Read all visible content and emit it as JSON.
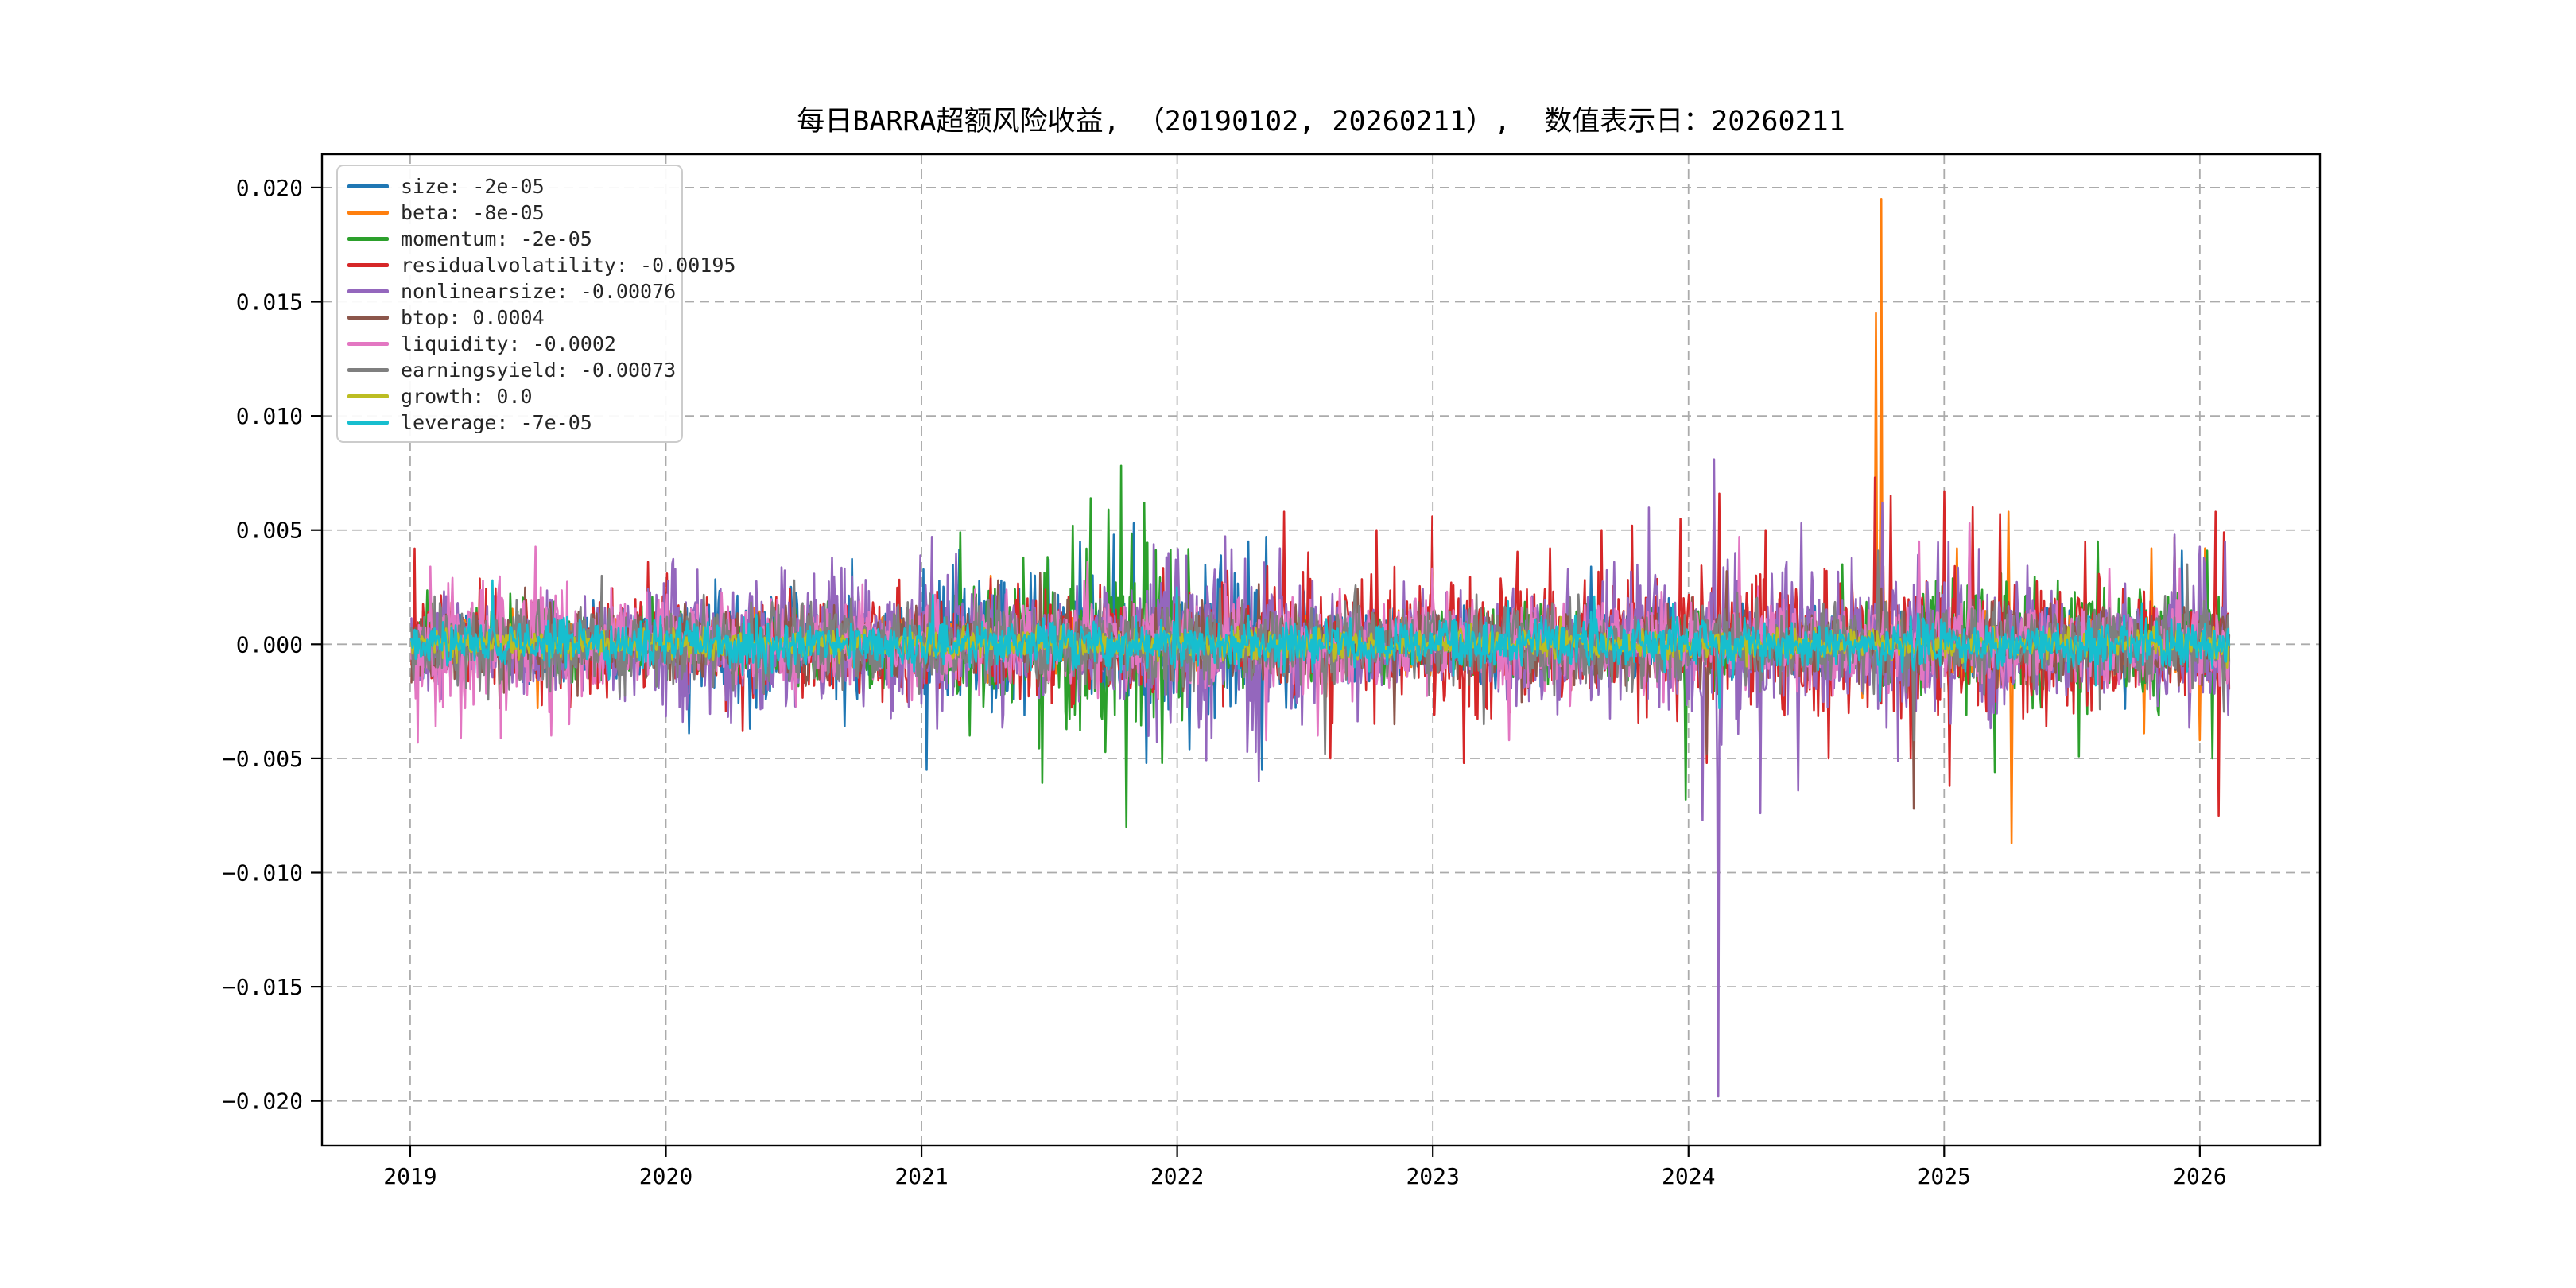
{
  "chart_data": {
    "type": "line",
    "title": "每日BARRA超额风险收益, （20190102, 20260211）,  数值表示日：20260211",
    "grid": true,
    "legend_position": "upper left",
    "xlim": [
      2018.655,
      2026.47
    ],
    "ylim": [
      -0.02196,
      0.02146
    ],
    "x_ticks": [
      2019,
      2020,
      2021,
      2022,
      2023,
      2024,
      2025,
      2026
    ],
    "x_tick_labels": [
      "2019",
      "2020",
      "2021",
      "2022",
      "2023",
      "2024",
      "2025",
      "2026"
    ],
    "y_ticks": [
      0.02,
      0.015,
      0.01,
      0.005,
      0.0,
      -0.005,
      -0.01,
      -0.015,
      -0.02
    ],
    "y_tick_labels": [
      "0.020",
      "0.015",
      "0.010",
      "0.005",
      "0.000",
      "−0.005",
      "−0.010",
      "−0.015",
      "−0.020"
    ],
    "x_start": 2019.005,
    "x_end": 2026.115,
    "points_per_series": 1730,
    "axis_color": "#000000",
    "grid_color": "#ababab",
    "series": [
      {
        "name": "size",
        "label": "size: -2e-05",
        "color": "#1f77b4",
        "seed": 11,
        "base_amp": 0.0011,
        "last_value": -2e-05,
        "bursts": [
          [
            2020.05,
            2020.8,
            0.0017
          ],
          [
            2021.0,
            2022.5,
            0.0022
          ]
        ],
        "spikes": [
          [
            2020.09,
            -0.0039
          ],
          [
            2020.33,
            -0.0037
          ],
          [
            2020.7,
            -0.0036
          ],
          [
            2021.02,
            -0.0055
          ],
          [
            2021.62,
            0.0045
          ],
          [
            2021.75,
            0.0048
          ],
          [
            2021.83,
            0.0053
          ],
          [
            2021.88,
            -0.0052
          ],
          [
            2022.05,
            -0.0046
          ],
          [
            2022.28,
            0.0045
          ],
          [
            2022.33,
            -0.0055
          ],
          [
            2022.35,
            0.0047
          ],
          [
            2023.62,
            0.0034
          ],
          [
            2025.93,
            0.0041
          ]
        ]
      },
      {
        "name": "beta",
        "label": "beta: -8e-05",
        "color": "#ff7f0e",
        "seed": 22,
        "base_amp": 0.00085,
        "last_value": -8e-05,
        "bursts": [
          [
            2024.6,
            2025.4,
            0.0013
          ]
        ],
        "spikes": [
          [
            2019.5,
            -0.0028
          ],
          [
            2021.27,
            0.003
          ],
          [
            2024.735,
            0.0145
          ],
          [
            2024.755,
            0.0195
          ],
          [
            2025.05,
            0.0042
          ],
          [
            2025.25,
            0.0058
          ],
          [
            2025.265,
            -0.0087
          ],
          [
            2025.78,
            -0.0039
          ],
          [
            2025.81,
            0.0042
          ],
          [
            2026.0,
            -0.0042
          ],
          [
            2026.02,
            0.0042
          ]
        ]
      },
      {
        "name": "momentum",
        "label": "momentum: -2e-05",
        "color": "#2ca02c",
        "seed": 33,
        "base_amp": 0.0012,
        "last_value": -2e-05,
        "bursts": [
          [
            2021.1,
            2021.4,
            0.0024
          ],
          [
            2021.45,
            2022.05,
            0.003
          ],
          [
            2024.85,
            2026.2,
            0.002
          ]
        ],
        "spikes": [
          [
            2021.15,
            0.0049
          ],
          [
            2021.19,
            -0.004
          ],
          [
            2021.59,
            0.0052
          ],
          [
            2021.66,
            0.0064
          ],
          [
            2021.73,
            0.0059
          ],
          [
            2021.8,
            -0.008
          ],
          [
            2021.87,
            0.0062
          ],
          [
            2021.94,
            -0.0052
          ],
          [
            2023.99,
            -0.0068
          ],
          [
            2024.6,
            0.0035
          ],
          [
            2025.2,
            -0.0056
          ],
          [
            2025.6,
            0.0045
          ],
          [
            2026.03,
            0.0041
          ],
          [
            2026.05,
            -0.005
          ]
        ]
      },
      {
        "name": "residualvolatility",
        "label": "residualvolatility: -0.00195",
        "color": "#d62728",
        "seed": 44,
        "base_amp": 0.0016,
        "last_value": -0.00195,
        "bursts": [
          [
            2022.35,
            2025.6,
            0.0022
          ]
        ],
        "spikes": [
          [
            2019.93,
            0.0036
          ],
          [
            2020.005,
            0.0031
          ],
          [
            2020.3,
            -0.0038
          ],
          [
            2022.42,
            0.0058
          ],
          [
            2022.6,
            -0.005
          ],
          [
            2022.78,
            0.005
          ],
          [
            2023.0,
            0.0056
          ],
          [
            2023.12,
            -0.0052
          ],
          [
            2023.46,
            0.0042
          ],
          [
            2023.66,
            0.005
          ],
          [
            2023.78,
            0.0052
          ],
          [
            2023.97,
            0.0055
          ],
          [
            2024.07,
            -0.0052
          ],
          [
            2024.12,
            0.0066
          ],
          [
            2024.3,
            0.005
          ],
          [
            2024.55,
            -0.005
          ],
          [
            2024.73,
            0.0073
          ],
          [
            2024.79,
            0.0065
          ],
          [
            2024.87,
            -0.005
          ],
          [
            2025.0,
            0.0067
          ],
          [
            2025.02,
            -0.0062
          ],
          [
            2025.11,
            0.006
          ],
          [
            2025.22,
            0.0057
          ],
          [
            2025.55,
            0.0045
          ],
          [
            2025.9,
            0.0047
          ],
          [
            2026.06,
            0.0058
          ],
          [
            2026.075,
            -0.0075
          ],
          [
            2026.095,
            0.0049
          ]
        ]
      },
      {
        "name": "nonlinearsize",
        "label": "nonlinearsize: -0.00076",
        "color": "#9467bd",
        "seed": 55,
        "base_amp": 0.0016,
        "last_value": -0.00076,
        "bursts": [
          [
            2020.0,
            2021.35,
            0.0023
          ],
          [
            2021.85,
            2022.55,
            0.0027
          ],
          [
            2023.3,
            2023.95,
            0.0022
          ],
          [
            2024.0,
            2025.35,
            0.0026
          ],
          [
            2025.8,
            2026.2,
            0.0024
          ]
        ],
        "spikes": [
          [
            2020.65,
            0.0038
          ],
          [
            2021.04,
            0.0047
          ],
          [
            2021.06,
            -0.0037
          ],
          [
            2022.32,
            -0.006
          ],
          [
            2022.4,
            0.0042
          ],
          [
            2023.71,
            0.0036
          ],
          [
            2024.055,
            -0.0077
          ],
          [
            2024.1,
            0.0081
          ],
          [
            2024.115,
            -0.0198
          ],
          [
            2024.28,
            -0.0074
          ],
          [
            2024.43,
            -0.0064
          ],
          [
            2024.44,
            0.0053
          ],
          [
            2024.76,
            0.0062
          ],
          [
            2025.1,
            0.005
          ],
          [
            2025.9,
            0.0048
          ],
          [
            2026.1,
            0.0045
          ]
        ]
      },
      {
        "name": "btop",
        "label": "btop: 0.0004",
        "color": "#8c564b",
        "seed": 66,
        "base_amp": 0.0011,
        "last_value": 0.0004,
        "bursts": [],
        "spikes": [
          [
            2019.35,
            -0.0028
          ],
          [
            2021.3,
            0.0028
          ],
          [
            2022.85,
            -0.0035
          ],
          [
            2024.07,
            -0.0048
          ],
          [
            2024.15,
            0.0032
          ],
          [
            2024.88,
            -0.0072
          ]
        ]
      },
      {
        "name": "liquidity",
        "label": "liquidity: -0.0002",
        "color": "#e377c2",
        "seed": 77,
        "base_amp": 0.0014,
        "last_value": -0.0002,
        "bursts": [
          [
            2019.02,
            2019.8,
            0.002
          ]
        ],
        "spikes": [
          [
            2019.08,
            0.0034
          ],
          [
            2019.1,
            -0.0036
          ],
          [
            2019.2,
            -0.0041
          ],
          [
            2019.55,
            -0.004
          ],
          [
            2019.62,
            -0.0035
          ],
          [
            2021.65,
            0.0036
          ],
          [
            2022.35,
            -0.0042
          ],
          [
            2022.55,
            -0.004
          ],
          [
            2023.3,
            -0.0042
          ],
          [
            2024.2,
            0.0047
          ],
          [
            2024.9,
            0.0045
          ],
          [
            2025.1,
            0.0053
          ]
        ]
      },
      {
        "name": "earningsyield",
        "label": "earningsyield: -0.00073",
        "color": "#7f7f7f",
        "seed": 88,
        "base_amp": 0.0013,
        "last_value": -0.00073,
        "bursts": [],
        "spikes": [
          [
            2019.75,
            0.003
          ],
          [
            2020.5,
            0.0028
          ],
          [
            2022.58,
            -0.0048
          ],
          [
            2023.2,
            -0.0035
          ],
          [
            2024.74,
            0.0041
          ],
          [
            2024.88,
            -0.0042
          ],
          [
            2025.95,
            0.0035
          ]
        ]
      },
      {
        "name": "growth",
        "label": "growth: 0.0",
        "color": "#bcbd22",
        "seed": 99,
        "base_amp": 0.00045,
        "last_value": 0.0,
        "bursts": [],
        "spikes": [
          [
            2023.5,
            0.0012
          ]
        ]
      },
      {
        "name": "leverage",
        "label": "leverage: -7e-05",
        "color": "#17becf",
        "seed": 110,
        "base_amp": 0.00075,
        "last_value": -7e-05,
        "bursts": [],
        "spikes": [
          [
            2019.32,
            0.0028
          ],
          [
            2022.0,
            0.0025
          ],
          [
            2023.63,
            0.0021
          ],
          [
            2024.12,
            -0.0028
          ],
          [
            2024.75,
            -0.0025
          ]
        ]
      }
    ]
  }
}
